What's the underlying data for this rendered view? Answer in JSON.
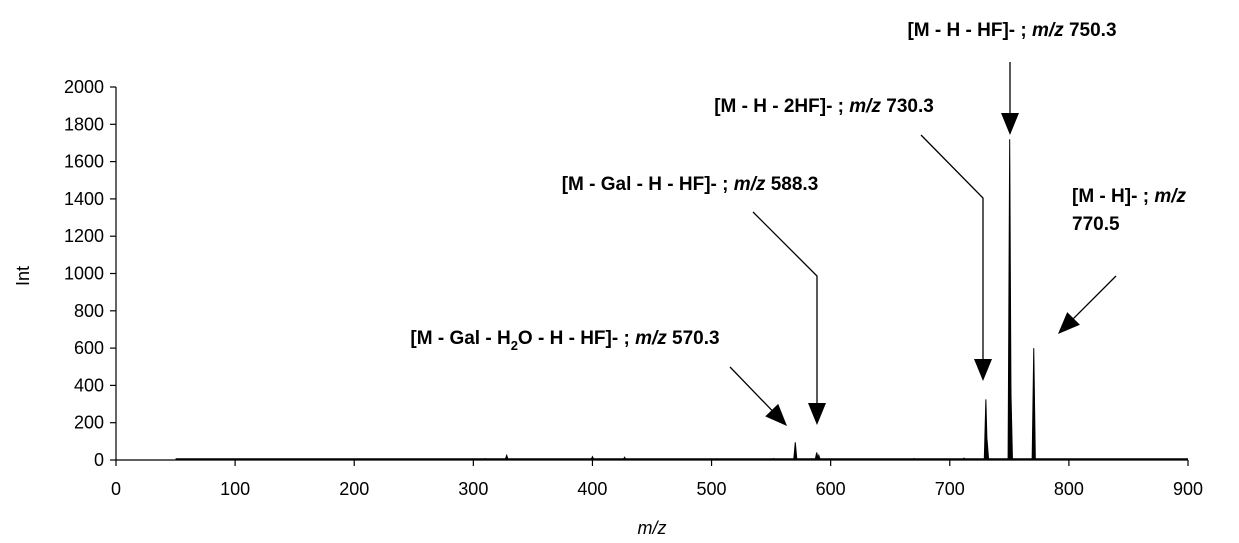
{
  "chart_data": {
    "type": "line",
    "xlabel": "m/z",
    "ylabel": "Int",
    "xlim": [
      0,
      900
    ],
    "ylim": [
      0,
      2000
    ],
    "xticks": [
      "0",
      "100",
      "200",
      "300",
      "400",
      "500",
      "600",
      "700",
      "800",
      "900"
    ],
    "yticks": [
      "0",
      "200",
      "400",
      "600",
      "800",
      "1000",
      "1200",
      "1400",
      "1600",
      "1800",
      "2000"
    ],
    "grid": false,
    "range_start": 50,
    "range_end": 900,
    "peaks": [
      {
        "x": 310,
        "y": 8
      },
      {
        "x": 328,
        "y": 25
      },
      {
        "x": 400,
        "y": 18
      },
      {
        "x": 427,
        "y": 15
      },
      {
        "x": 552,
        "y": 8
      },
      {
        "x": 570.3,
        "y": 95
      },
      {
        "x": 588.3,
        "y": 40
      },
      {
        "x": 590,
        "y": 25
      },
      {
        "x": 670,
        "y": 8
      },
      {
        "x": 712,
        "y": 10
      },
      {
        "x": 730.3,
        "y": 325
      },
      {
        "x": 731.3,
        "y": 110
      },
      {
        "x": 750.3,
        "y": 1720
      },
      {
        "x": 751.3,
        "y": 380
      },
      {
        "x": 770.5,
        "y": 600
      }
    ],
    "annotations": [
      {
        "id": "a750",
        "prefix": "[M - H - HF]- ; ",
        "mz_label": "m/z",
        "suffix": " 750.3"
      },
      {
        "id": "a730",
        "prefix": "[M - H - 2HF]- ; ",
        "mz_label": "m/z",
        "suffix": " 730.3"
      },
      {
        "id": "a588",
        "prefix": "[M - Gal - H - HF]- ; ",
        "mz_label": "m/z",
        "suffix": " 588.3"
      },
      {
        "id": "a770",
        "line1_prefix": "[M - H]- ; ",
        "mz_label": "m/z",
        "line2": "770.5"
      },
      {
        "id": "a570",
        "p1": "[M - Gal - H",
        "sub": "2",
        "p2": "O - H - HF]- ; ",
        "mz_label": "m/z",
        "suffix": " 570.3"
      }
    ]
  }
}
